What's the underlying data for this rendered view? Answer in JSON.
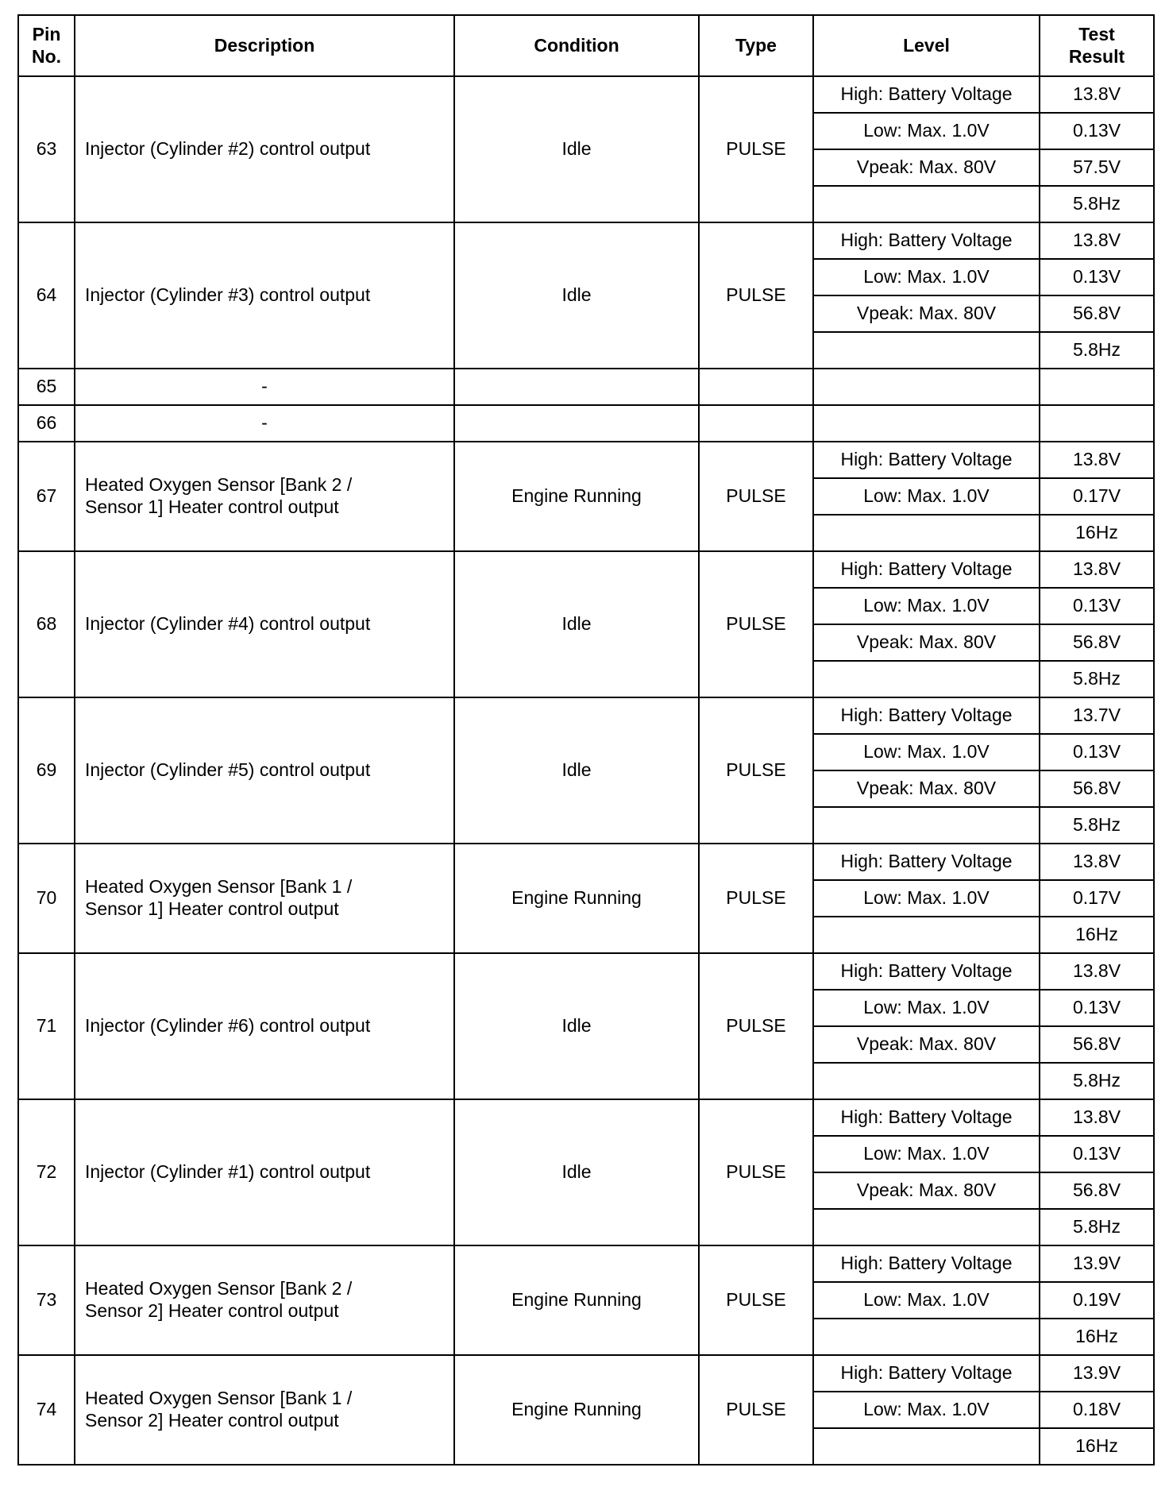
{
  "headers": [
    "Pin\nNo.",
    "Description",
    "Condition",
    "Type",
    "Level",
    "Test\nResult"
  ],
  "rows": [
    {
      "pin": "63",
      "description": "Injector (Cylinder #2) control output",
      "condition": "Idle",
      "type": "PULSE",
      "levels": [
        {
          "level": "High: Battery Voltage",
          "result": "13.8V"
        },
        {
          "level": "Low:  Max.  1.0V",
          "result": "0.13V"
        },
        {
          "level": "Vpeak:  Max.  80V",
          "result": "57.5V"
        },
        {
          "level": "",
          "result": "5.8Hz"
        }
      ]
    },
    {
      "pin": "64",
      "description": "Injector (Cylinder #3) control output",
      "condition": "Idle",
      "type": "PULSE",
      "levels": [
        {
          "level": "High: Battery Voltage",
          "result": "13.8V"
        },
        {
          "level": "Low:  Max.  1.0V",
          "result": "0.13V"
        },
        {
          "level": "Vpeak:  Max.  80V",
          "result": "56.8V"
        },
        {
          "level": "",
          "result": "5.8Hz"
        }
      ]
    },
    {
      "pin": "65",
      "description": "-",
      "condition": "",
      "type": "",
      "levels": [
        {
          "level": "",
          "result": ""
        }
      ],
      "center": true
    },
    {
      "pin": "66",
      "description": "-",
      "condition": "",
      "type": "",
      "levels": [
        {
          "level": "",
          "result": ""
        }
      ],
      "center": true
    },
    {
      "pin": "67",
      "description": "Heated Oxygen Sensor [Bank 2 /\nSensor 1] Heater control output",
      "condition": "Engine Running",
      "type": "PULSE",
      "levels": [
        {
          "level": "High: Battery Voltage",
          "result": "13.8V"
        },
        {
          "level": "Low:  Max.  1.0V",
          "result": "0.17V"
        },
        {
          "level": "",
          "result": "16Hz"
        }
      ]
    },
    {
      "pin": "68",
      "description": "Injector (Cylinder #4) control output",
      "condition": "Idle",
      "type": "PULSE",
      "levels": [
        {
          "level": "High: Battery Voltage",
          "result": "13.8V"
        },
        {
          "level": "Low:  Max.  1.0V",
          "result": "0.13V"
        },
        {
          "level": "Vpeak:  Max.  80V",
          "result": "56.8V"
        },
        {
          "level": "",
          "result": "5.8Hz"
        }
      ]
    },
    {
      "pin": "69",
      "description": "Injector (Cylinder #5) control output",
      "condition": "Idle",
      "type": "PULSE",
      "levels": [
        {
          "level": "High: Battery Voltage",
          "result": "13.7V"
        },
        {
          "level": "Low:  Max.  1.0V",
          "result": "0.13V"
        },
        {
          "level": "Vpeak:  Max.  80V",
          "result": "56.8V"
        },
        {
          "level": "",
          "result": "5.8Hz"
        }
      ]
    },
    {
      "pin": "70",
      "description": "Heated Oxygen Sensor [Bank 1 /\nSensor 1] Heater control output",
      "condition": "Engine Running",
      "type": "PULSE",
      "levels": [
        {
          "level": "High: Battery Voltage",
          "result": "13.8V"
        },
        {
          "level": "Low:  Max.  1.0V",
          "result": "0.17V"
        },
        {
          "level": "",
          "result": "16Hz"
        }
      ]
    },
    {
      "pin": "71",
      "description": "Injector (Cylinder #6) control output",
      "condition": "Idle",
      "type": "PULSE",
      "levels": [
        {
          "level": "High: Battery Voltage",
          "result": "13.8V"
        },
        {
          "level": "Low:  Max.  1.0V",
          "result": "0.13V"
        },
        {
          "level": "Vpeak:  Max.  80V",
          "result": "56.8V"
        },
        {
          "level": "",
          "result": "5.8Hz"
        }
      ]
    },
    {
      "pin": "72",
      "description": "Injector (Cylinder #1) control output",
      "condition": "Idle",
      "type": "PULSE",
      "levels": [
        {
          "level": "High: Battery Voltage",
          "result": "13.8V"
        },
        {
          "level": "Low:  Max.  1.0V",
          "result": "0.13V"
        },
        {
          "level": "Vpeak:  Max.  80V",
          "result": "56.8V"
        },
        {
          "level": "",
          "result": "5.8Hz"
        }
      ]
    },
    {
      "pin": "73",
      "description": "Heated Oxygen Sensor [Bank 2 /\nSensor 2] Heater control output",
      "condition": "Engine Running",
      "type": "PULSE",
      "levels": [
        {
          "level": "High: Battery Voltage",
          "result": "13.9V"
        },
        {
          "level": "Low:  Max.  1.0V",
          "result": "0.19V"
        },
        {
          "level": "",
          "result": "16Hz"
        }
      ]
    },
    {
      "pin": "74",
      "description": "Heated Oxygen Sensor [Bank 1 /\nSensor 2] Heater control output",
      "condition": "Engine Running",
      "type": "PULSE",
      "levels": [
        {
          "level": "High: Battery Voltage",
          "result": "13.9V"
        },
        {
          "level": "Low:  Max.  1.0V",
          "result": "0.18V"
        },
        {
          "level": "",
          "result": "16Hz"
        }
      ]
    }
  ]
}
